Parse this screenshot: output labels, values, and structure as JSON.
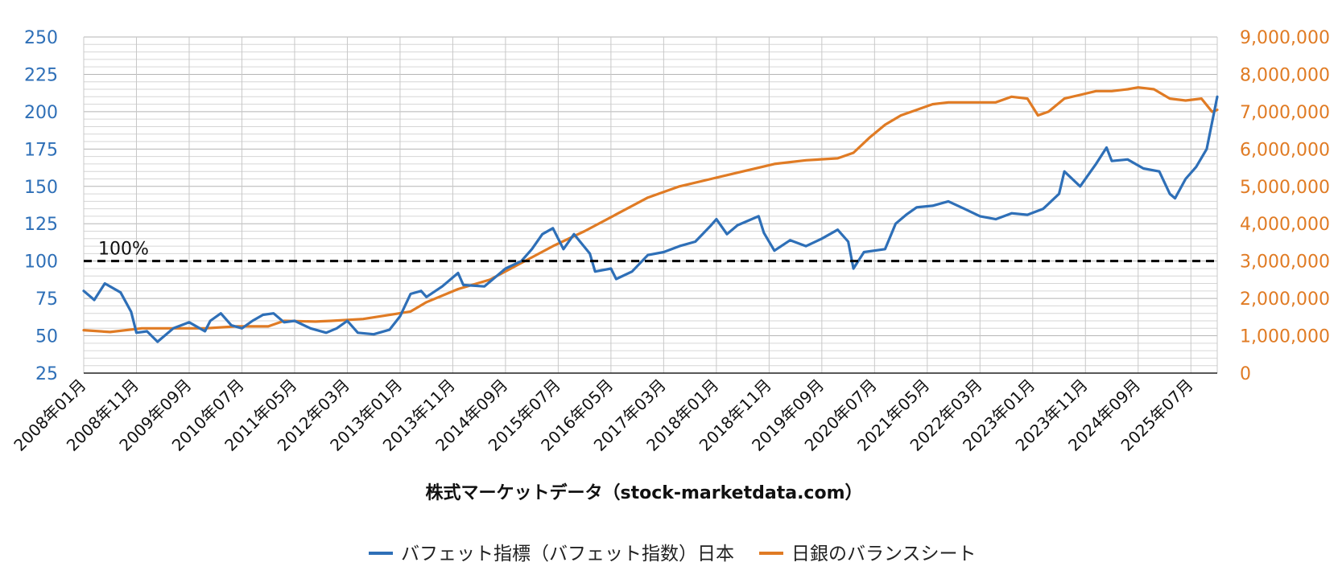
{
  "chart_data": {
    "type": "line",
    "xlabel": "株式マーケットデータ（stock-marketdata.com）",
    "x_tick_labels": [
      "2008年01月",
      "2008年11月",
      "2009年09月",
      "2010年07月",
      "2011年05月",
      "2012年03月",
      "2013年01月",
      "2013年11月",
      "2014年09月",
      "2015年07月",
      "2016年05月",
      "2017年03月",
      "2018年01月",
      "2018年11月",
      "2019年09月",
      "2020年07月",
      "2021年05月",
      "2022年03月",
      "2023年01月",
      "2023年11月",
      "2024年09月",
      "2025年07月"
    ],
    "y_left": {
      "ticks": [
        "250",
        "225",
        "200",
        "175",
        "150",
        "125",
        "100",
        "75",
        "50",
        "25"
      ],
      "range": [
        25,
        250
      ]
    },
    "y_right": {
      "ticks": [
        "9,000,000",
        "8,000,000",
        "7,000,000",
        "6,000,000",
        "5,000,000",
        "4,000,000",
        "3,000,000",
        "2,000,000",
        "1,000,000",
        "0"
      ],
      "range": [
        0,
        9000000
      ]
    },
    "reference_line": {
      "value": 100,
      "label": "100%"
    },
    "grid": true,
    "legend_position": "bottom",
    "colors": {
      "left_axis": "#2e6fb7",
      "right_axis": "#e07b24",
      "reference": "#000000",
      "grid": "#bdbdbd"
    },
    "series": [
      {
        "name": "バフェット指標（バフェット指数）日本",
        "axis": "left",
        "color": "#2e6fb7",
        "keypoints": [
          [
            "2008-01",
            80
          ],
          [
            "2008-03",
            74
          ],
          [
            "2008-05",
            85
          ],
          [
            "2008-08",
            79
          ],
          [
            "2008-10",
            66
          ],
          [
            "2008-11",
            52
          ],
          [
            "2009-01",
            53
          ],
          [
            "2009-03",
            46
          ],
          [
            "2009-06",
            55
          ],
          [
            "2009-09",
            59
          ],
          [
            "2009-12",
            53
          ],
          [
            "2010-01",
            60
          ],
          [
            "2010-03",
            65
          ],
          [
            "2010-05",
            57
          ],
          [
            "2010-07",
            55
          ],
          [
            "2010-09",
            60
          ],
          [
            "2010-11",
            64
          ],
          [
            "2011-01",
            65
          ],
          [
            "2011-03",
            59
          ],
          [
            "2011-05",
            60
          ],
          [
            "2011-08",
            55
          ],
          [
            "2011-11",
            52
          ],
          [
            "2012-01",
            55
          ],
          [
            "2012-03",
            60
          ],
          [
            "2012-05",
            52
          ],
          [
            "2012-08",
            51
          ],
          [
            "2012-11",
            54
          ],
          [
            "2013-01",
            63
          ],
          [
            "2013-03",
            78
          ],
          [
            "2013-05",
            80
          ],
          [
            "2013-06",
            76
          ],
          [
            "2013-09",
            83
          ],
          [
            "2013-12",
            92
          ],
          [
            "2014-01",
            84
          ],
          [
            "2014-05",
            83
          ],
          [
            "2014-09",
            95
          ],
          [
            "2014-12",
            100
          ],
          [
            "2015-02",
            108
          ],
          [
            "2015-04",
            118
          ],
          [
            "2015-06",
            122
          ],
          [
            "2015-08",
            108
          ],
          [
            "2015-10",
            118
          ],
          [
            "2016-01",
            105
          ],
          [
            "2016-02",
            93
          ],
          [
            "2016-05",
            95
          ],
          [
            "2016-06",
            88
          ],
          [
            "2016-09",
            93
          ],
          [
            "2016-12",
            104
          ],
          [
            "2017-03",
            106
          ],
          [
            "2017-06",
            110
          ],
          [
            "2017-09",
            113
          ],
          [
            "2017-12",
            124
          ],
          [
            "2018-01",
            128
          ],
          [
            "2018-03",
            118
          ],
          [
            "2018-05",
            124
          ],
          [
            "2018-09",
            130
          ],
          [
            "2018-10",
            119
          ],
          [
            "2018-12",
            107
          ],
          [
            "2019-03",
            114
          ],
          [
            "2019-06",
            110
          ],
          [
            "2019-09",
            115
          ],
          [
            "2019-12",
            121
          ],
          [
            "2020-02",
            113
          ],
          [
            "2020-03",
            95
          ],
          [
            "2020-05",
            106
          ],
          [
            "2020-09",
            108
          ],
          [
            "2020-11",
            125
          ],
          [
            "2021-01",
            131
          ],
          [
            "2021-03",
            136
          ],
          [
            "2021-06",
            137
          ],
          [
            "2021-09",
            140
          ],
          [
            "2021-12",
            135
          ],
          [
            "2022-03",
            130
          ],
          [
            "2022-06",
            128
          ],
          [
            "2022-09",
            132
          ],
          [
            "2022-12",
            131
          ],
          [
            "2023-03",
            135
          ],
          [
            "2023-06",
            145
          ],
          [
            "2023-07",
            160
          ],
          [
            "2023-10",
            150
          ],
          [
            "2023-12",
            160
          ],
          [
            "2024-01",
            165
          ],
          [
            "2024-03",
            176
          ],
          [
            "2024-04",
            167
          ],
          [
            "2024-07",
            168
          ],
          [
            "2024-10",
            162
          ],
          [
            "2025-01",
            160
          ],
          [
            "2025-03",
            145
          ],
          [
            "2025-04",
            142
          ],
          [
            "2025-06",
            155
          ],
          [
            "2025-08",
            163
          ],
          [
            "2025-10",
            175
          ],
          [
            "2025-12",
            210
          ]
        ]
      },
      {
        "name": "日銀のバランスシート",
        "axis": "right",
        "color": "#e07b24",
        "keypoints": [
          [
            "2008-01",
            1150000
          ],
          [
            "2008-06",
            1100000
          ],
          [
            "2008-12",
            1200000
          ],
          [
            "2009-06",
            1200000
          ],
          [
            "2009-12",
            1200000
          ],
          [
            "2010-06",
            1250000
          ],
          [
            "2010-12",
            1250000
          ],
          [
            "2011-03",
            1400000
          ],
          [
            "2011-09",
            1380000
          ],
          [
            "2011-12",
            1400000
          ],
          [
            "2012-06",
            1450000
          ],
          [
            "2012-12",
            1580000
          ],
          [
            "2013-03",
            1650000
          ],
          [
            "2013-06",
            1900000
          ],
          [
            "2013-12",
            2250000
          ],
          [
            "2014-06",
            2500000
          ],
          [
            "2014-12",
            2950000
          ],
          [
            "2015-06",
            3400000
          ],
          [
            "2015-12",
            3800000
          ],
          [
            "2016-06",
            4250000
          ],
          [
            "2016-12",
            4700000
          ],
          [
            "2017-06",
            5000000
          ],
          [
            "2017-12",
            5200000
          ],
          [
            "2018-06",
            5400000
          ],
          [
            "2018-12",
            5600000
          ],
          [
            "2019-06",
            5700000
          ],
          [
            "2019-12",
            5750000
          ],
          [
            "2020-03",
            5900000
          ],
          [
            "2020-06",
            6300000
          ],
          [
            "2020-09",
            6650000
          ],
          [
            "2020-12",
            6900000
          ],
          [
            "2021-03",
            7050000
          ],
          [
            "2021-06",
            7200000
          ],
          [
            "2021-09",
            7250000
          ],
          [
            "2021-12",
            7250000
          ],
          [
            "2022-03",
            7250000
          ],
          [
            "2022-06",
            7250000
          ],
          [
            "2022-09",
            7400000
          ],
          [
            "2022-12",
            7350000
          ],
          [
            "2023-02",
            6900000
          ],
          [
            "2023-04",
            7000000
          ],
          [
            "2023-07",
            7350000
          ],
          [
            "2023-10",
            7450000
          ],
          [
            "2024-01",
            7550000
          ],
          [
            "2024-04",
            7550000
          ],
          [
            "2024-07",
            7600000
          ],
          [
            "2024-09",
            7650000
          ],
          [
            "2024-12",
            7600000
          ],
          [
            "2025-03",
            7350000
          ],
          [
            "2025-06",
            7300000
          ],
          [
            "2025-09",
            7350000
          ],
          [
            "2025-11",
            7000000
          ],
          [
            "2025-12",
            7050000
          ]
        ]
      }
    ]
  }
}
